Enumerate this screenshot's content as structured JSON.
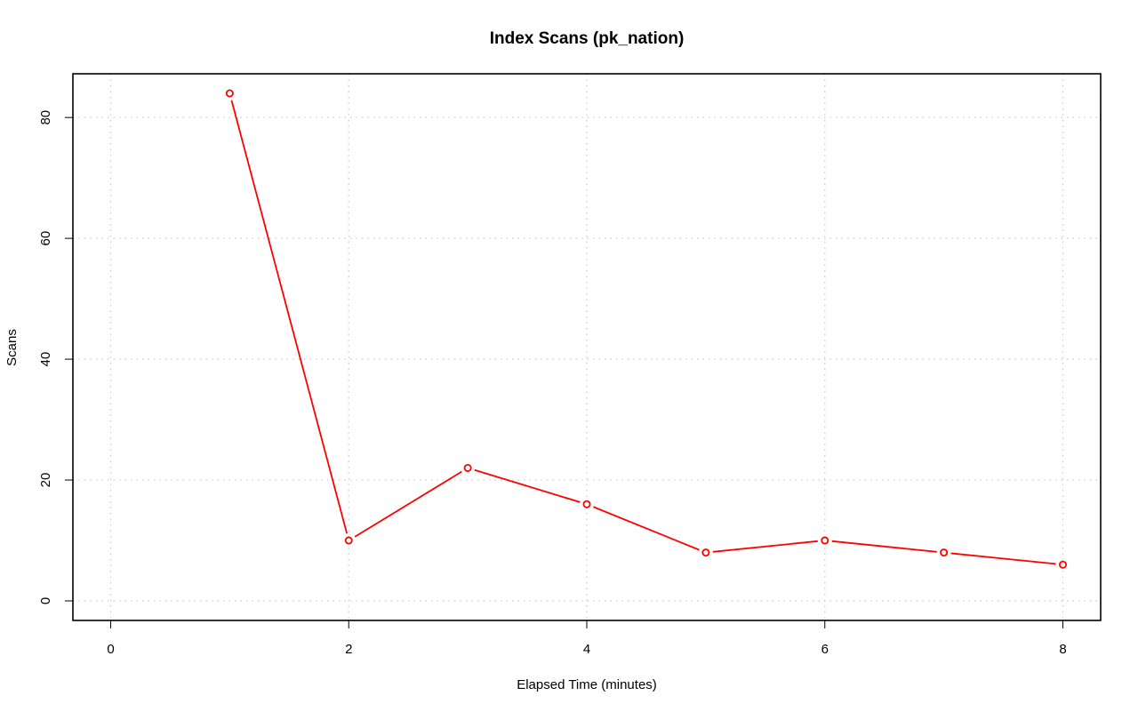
{
  "chart_data": {
    "type": "line",
    "title": "Index Scans (pk_nation)",
    "xlabel": "Elapsed Time (minutes)",
    "ylabel": "Scans",
    "xlim": [
      0,
      8
    ],
    "ylim": [
      0,
      84
    ],
    "xticks": [
      "0",
      "2",
      "4",
      "6",
      "8"
    ],
    "yticks": [
      "0",
      "20",
      "40",
      "60",
      "80"
    ],
    "grid": true,
    "series": [
      {
        "color": "#ff0000",
        "x": [
          1,
          2,
          3,
          4,
          5,
          6,
          7,
          8
        ],
        "y": [
          84,
          10,
          22,
          16,
          8,
          10,
          8,
          6
        ]
      }
    ]
  }
}
